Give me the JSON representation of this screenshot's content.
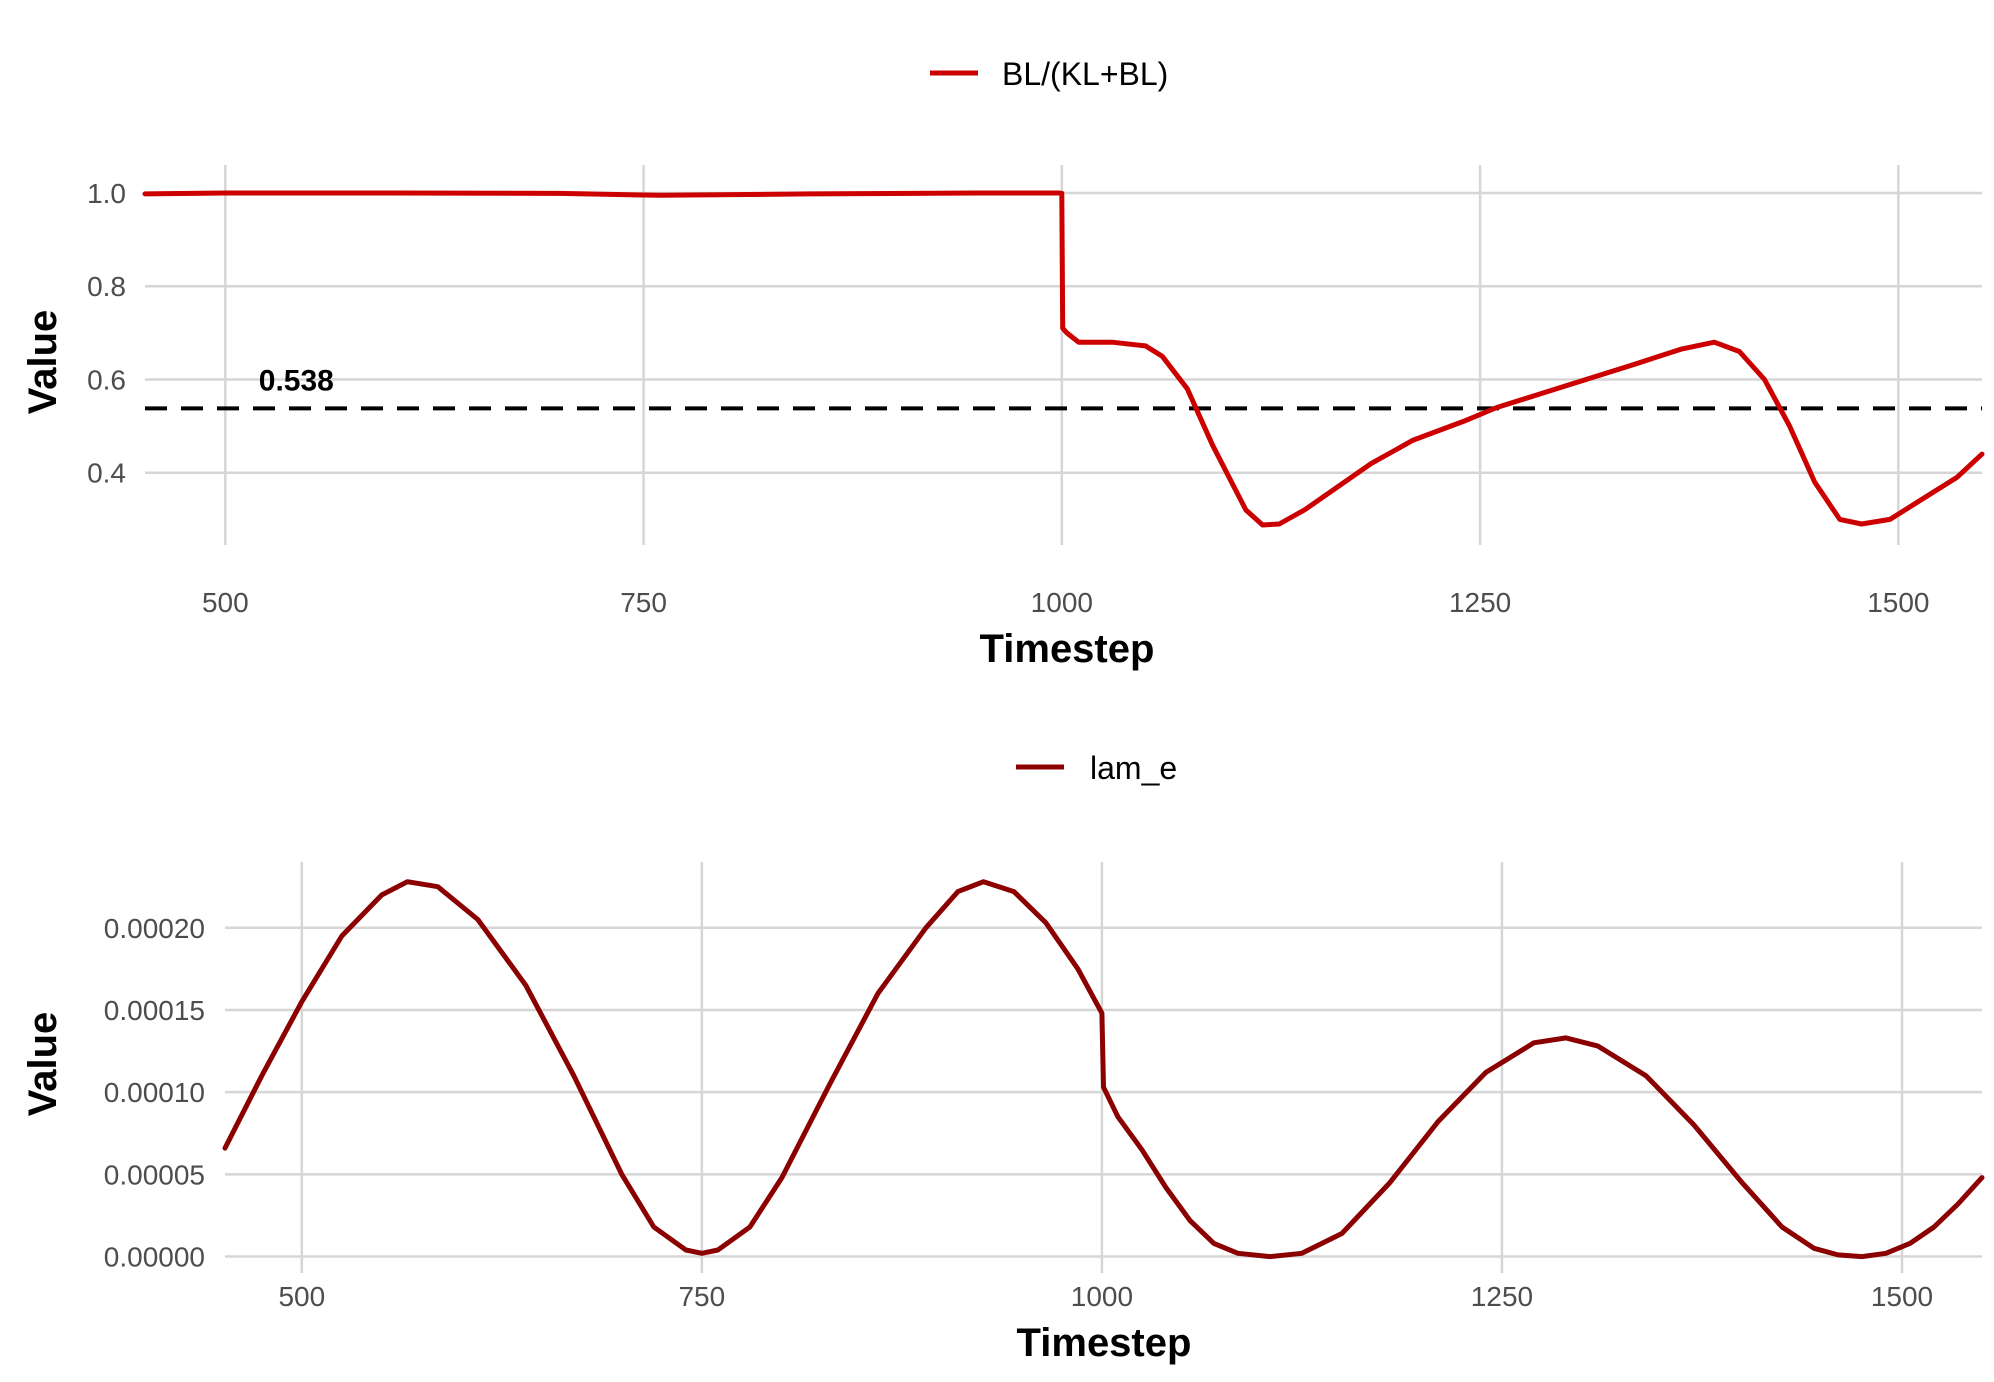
{
  "chart_data": [
    {
      "type": "line",
      "xlabel": "Timestep",
      "ylabel": "Value",
      "xlim": [
        452,
        1550
      ],
      "ylim": [
        0.245,
        1.06
      ],
      "x_ticks": [
        500,
        750,
        1000,
        1250,
        1500
      ],
      "x_tick_labels": [
        "500",
        "750",
        "1000",
        "1250",
        "1500"
      ],
      "y_ticks": [
        0.4,
        0.6,
        0.8,
        1.0
      ],
      "y_tick_labels": [
        "0.4",
        "0.6",
        "0.8",
        "1.0"
      ],
      "grid": true,
      "legend": {
        "position": "top",
        "entries": [
          "BL/(KL+BL)"
        ]
      },
      "series": [
        {
          "name": "BL/(KL+BL)",
          "color": "#cc0000",
          "points": [
            [
              452,
              0.998
            ],
            [
              500,
              1.0
            ],
            [
              600,
              1.0
            ],
            [
              700,
              0.999
            ],
            [
              760,
              0.995
            ],
            [
              850,
              0.998
            ],
            [
              950,
              1.0
            ],
            [
              998,
              1.0
            ],
            [
              1000,
              0.999
            ],
            [
              1000.5,
              0.71
            ],
            [
              1003,
              0.7
            ],
            [
              1010,
              0.68
            ],
            [
              1030,
              0.68
            ],
            [
              1050,
              0.672
            ],
            [
              1060,
              0.65
            ],
            [
              1075,
              0.58
            ],
            [
              1090,
              0.46
            ],
            [
              1100,
              0.39
            ],
            [
              1110,
              0.32
            ],
            [
              1120,
              0.288
            ],
            [
              1130,
              0.29
            ],
            [
              1145,
              0.32
            ],
            [
              1165,
              0.37
            ],
            [
              1185,
              0.42
            ],
            [
              1210,
              0.47
            ],
            [
              1240,
              0.51
            ],
            [
              1260,
              0.54
            ],
            [
              1300,
              0.585
            ],
            [
              1340,
              0.63
            ],
            [
              1370,
              0.665
            ],
            [
              1390,
              0.68
            ],
            [
              1405,
              0.66
            ],
            [
              1420,
              0.6
            ],
            [
              1435,
              0.5
            ],
            [
              1450,
              0.38
            ],
            [
              1465,
              0.3
            ],
            [
              1478,
              0.29
            ],
            [
              1495,
              0.3
            ],
            [
              1515,
              0.345
            ],
            [
              1535,
              0.39
            ],
            [
              1550,
              0.44
            ]
          ]
        }
      ],
      "hline": {
        "y": 0.538,
        "label": "0.538",
        "label_x": 520,
        "color": "#000000",
        "style": "dashed"
      }
    },
    {
      "type": "line",
      "xlabel": "Timestep",
      "ylabel": "Value",
      "xlim": [
        452,
        1550
      ],
      "ylim": [
        -1e-05,
        0.00024
      ],
      "x_ticks": [
        500,
        750,
        1000,
        1250,
        1500
      ],
      "x_tick_labels": [
        "500",
        "750",
        "1000",
        "1250",
        "1500"
      ],
      "y_ticks": [
        0,
        5e-05,
        0.0001,
        0.00015,
        0.0002
      ],
      "y_tick_labels": [
        "0.00000",
        "0.00005",
        "0.00010",
        "0.00015",
        "0.00020"
      ],
      "grid": true,
      "legend": {
        "position": "top",
        "entries": [
          "lam_e"
        ]
      },
      "series": [
        {
          "name": "lam_e",
          "color": "#8b0000",
          "points": [
            [
              452,
              6.6e-05
            ],
            [
              475,
              0.00011
            ],
            [
              500,
              0.000155
            ],
            [
              525,
              0.000195
            ],
            [
              550,
              0.00022
            ],
            [
              566,
              0.000228
            ],
            [
              585,
              0.000225
            ],
            [
              610,
              0.000205
            ],
            [
              640,
              0.000165
            ],
            [
              670,
              0.00011
            ],
            [
              700,
              5e-05
            ],
            [
              720,
              1.8e-05
            ],
            [
              740,
              4e-06
            ],
            [
              750,
              2e-06
            ],
            [
              760,
              4e-06
            ],
            [
              780,
              1.8e-05
            ],
            [
              800,
              4.8e-05
            ],
            [
              830,
              0.000105
            ],
            [
              860,
              0.00016
            ],
            [
              890,
              0.0002
            ],
            [
              910,
              0.000222
            ],
            [
              926,
              0.000228
            ],
            [
              945,
              0.000222
            ],
            [
              965,
              0.000203
            ],
            [
              985,
              0.000175
            ],
            [
              1000,
              0.000148
            ],
            [
              1001,
              0.000103
            ],
            [
              1010,
              8.5e-05
            ],
            [
              1025,
              6.5e-05
            ],
            [
              1040,
              4.2e-05
            ],
            [
              1055,
              2.2e-05
            ],
            [
              1070,
              8e-06
            ],
            [
              1085,
              2e-06
            ],
            [
              1105,
              0.0
            ],
            [
              1125,
              2e-06
            ],
            [
              1150,
              1.4e-05
            ],
            [
              1180,
              4.5e-05
            ],
            [
              1210,
              8.2e-05
            ],
            [
              1240,
              0.000112
            ],
            [
              1270,
              0.00013
            ],
            [
              1290,
              0.000133
            ],
            [
              1310,
              0.000128
            ],
            [
              1340,
              0.00011
            ],
            [
              1370,
              8e-05
            ],
            [
              1400,
              4.5e-05
            ],
            [
              1425,
              1.8e-05
            ],
            [
              1445,
              5e-06
            ],
            [
              1460,
              1e-06
            ],
            [
              1475,
              0.0
            ],
            [
              1490,
              2e-06
            ],
            [
              1505,
              8e-06
            ],
            [
              1520,
              1.8e-05
            ],
            [
              1535,
              3.2e-05
            ],
            [
              1550,
              4.8e-05
            ]
          ]
        }
      ]
    }
  ]
}
